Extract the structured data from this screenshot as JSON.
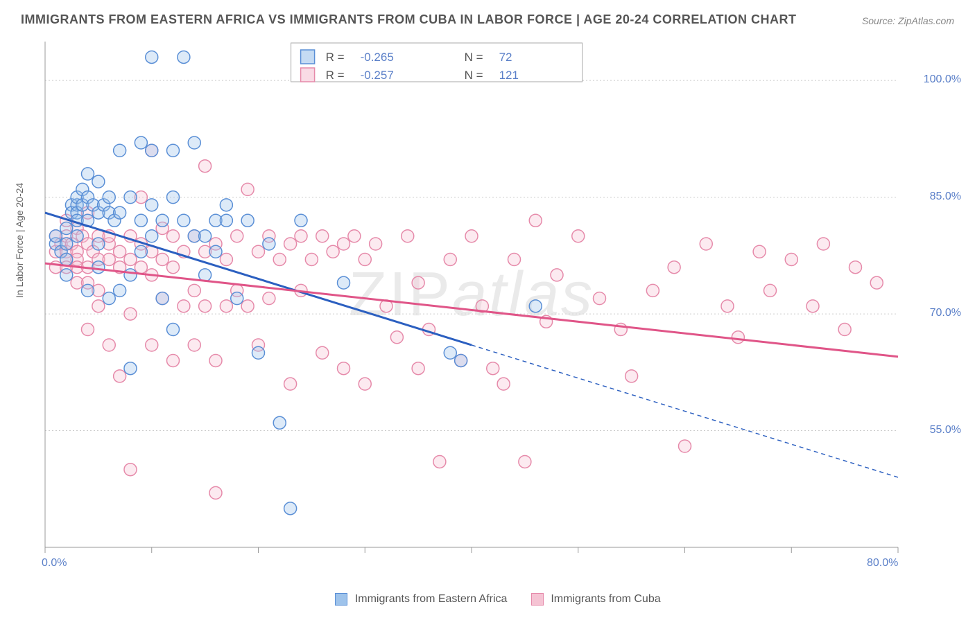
{
  "title": "IMMIGRANTS FROM EASTERN AFRICA VS IMMIGRANTS FROM CUBA IN LABOR FORCE | AGE 20-24 CORRELATION CHART",
  "source": "Source: ZipAtlas.com",
  "watermark_zip": "ZIP",
  "watermark_atlas": "atlas",
  "y_axis_label": "In Labor Force | Age 20-24",
  "chart": {
    "type": "scatter",
    "background_color": "#ffffff",
    "grid_color": "#cccccc",
    "grid_dash": "2,3",
    "axis_color": "#999999",
    "tick_color": "#5a7fc8",
    "xlim": [
      0,
      80
    ],
    "ylim": [
      40,
      105
    ],
    "x_ticks": [
      0,
      10,
      20,
      30,
      40,
      50,
      60,
      70,
      80
    ],
    "x_tick_labels": {
      "0": "0.0%",
      "80": "80.0%"
    },
    "y_ticks": [
      55,
      70,
      85,
      100
    ],
    "y_tick_labels": {
      "55": "55.0%",
      "70": "70.0%",
      "85": "85.0%",
      "100": "100.0%"
    },
    "marker_radius": 9,
    "marker_stroke_width": 1.5,
    "marker_fill_opacity": 0.35,
    "trend_line_width": 3
  },
  "legend_box": {
    "r_label": "R =",
    "n_label": "N =",
    "border_color": "#aaaaaa",
    "text_color": "#555555",
    "value_color": "#5a7fc8"
  },
  "series": [
    {
      "name": "Immigrants from Eastern Africa",
      "color_fill": "#9ec3eb",
      "color_stroke": "#5a8fd6",
      "trend_color": "#2b5fc0",
      "R": "-0.265",
      "N": "72",
      "trend": {
        "x1": 0,
        "y1": 83,
        "x2_solid": 40,
        "y2_solid": 66,
        "x2": 80,
        "y2": 49
      },
      "points": [
        [
          1,
          79
        ],
        [
          1,
          80
        ],
        [
          1.5,
          78
        ],
        [
          2,
          81
        ],
        [
          2,
          79
        ],
        [
          2,
          77
        ],
        [
          2,
          75
        ],
        [
          2.5,
          84
        ],
        [
          2.5,
          83
        ],
        [
          3,
          84
        ],
        [
          3,
          83
        ],
        [
          3,
          82
        ],
        [
          3,
          85
        ],
        [
          3,
          80
        ],
        [
          3.5,
          84
        ],
        [
          3.5,
          86
        ],
        [
          4,
          85
        ],
        [
          4,
          82
        ],
        [
          4,
          88
        ],
        [
          4,
          73
        ],
        [
          4.5,
          84
        ],
        [
          5,
          83
        ],
        [
          5,
          87
        ],
        [
          5,
          79
        ],
        [
          5,
          76
        ],
        [
          5.5,
          84
        ],
        [
          6,
          83
        ],
        [
          6,
          85
        ],
        [
          6,
          72
        ],
        [
          6.5,
          82
        ],
        [
          7,
          91
        ],
        [
          7,
          83
        ],
        [
          7,
          73
        ],
        [
          8,
          85
        ],
        [
          8,
          63
        ],
        [
          8,
          75
        ],
        [
          9,
          92
        ],
        [
          9,
          82
        ],
        [
          9,
          78
        ],
        [
          10,
          103
        ],
        [
          10,
          91
        ],
        [
          10,
          80
        ],
        [
          10,
          84
        ],
        [
          11,
          72
        ],
        [
          11,
          82
        ],
        [
          12,
          91
        ],
        [
          12,
          85
        ],
        [
          12,
          68
        ],
        [
          13,
          103
        ],
        [
          13,
          82
        ],
        [
          14,
          92
        ],
        [
          14,
          80
        ],
        [
          15,
          80
        ],
        [
          15,
          75
        ],
        [
          16,
          78
        ],
        [
          16,
          82
        ],
        [
          17,
          82
        ],
        [
          17,
          84
        ],
        [
          18,
          72
        ],
        [
          19,
          82
        ],
        [
          20,
          65
        ],
        [
          21,
          79
        ],
        [
          22,
          56
        ],
        [
          23,
          45
        ],
        [
          24,
          82
        ],
        [
          28,
          74
        ],
        [
          38,
          65
        ],
        [
          39,
          64
        ],
        [
          46,
          71
        ]
      ]
    },
    {
      "name": "Immigrants from Cuba",
      "color_fill": "#f5c3d3",
      "color_stroke": "#e68aaa",
      "trend_color": "#e05588",
      "R": "-0.257",
      "N": "121",
      "trend": {
        "x1": 0,
        "y1": 76.5,
        "x2_solid": 80,
        "y2_solid": 64.5,
        "x2": 80,
        "y2": 64.5
      },
      "points": [
        [
          1,
          78
        ],
        [
          1,
          76
        ],
        [
          1,
          80
        ],
        [
          1.5,
          79
        ],
        [
          2,
          78
        ],
        [
          2,
          77
        ],
        [
          2,
          76
        ],
        [
          2,
          80
        ],
        [
          2,
          82
        ],
        [
          2.5,
          79
        ],
        [
          3,
          81
        ],
        [
          3,
          78
        ],
        [
          3,
          77
        ],
        [
          3,
          76
        ],
        [
          3,
          74
        ],
        [
          3.5,
          80
        ],
        [
          4,
          83
        ],
        [
          4,
          79
        ],
        [
          4,
          76
        ],
        [
          4,
          74
        ],
        [
          4,
          68
        ],
        [
          4.5,
          78
        ],
        [
          5,
          80
        ],
        [
          5,
          77
        ],
        [
          5,
          73
        ],
        [
          5,
          71
        ],
        [
          6,
          79
        ],
        [
          6,
          77
        ],
        [
          6,
          80
        ],
        [
          6,
          66
        ],
        [
          7,
          78
        ],
        [
          7,
          76
        ],
        [
          7,
          62
        ],
        [
          8,
          80
        ],
        [
          8,
          77
        ],
        [
          8,
          70
        ],
        [
          8,
          50
        ],
        [
          9,
          79
        ],
        [
          9,
          76
        ],
        [
          9,
          85
        ],
        [
          10,
          91
        ],
        [
          10,
          78
        ],
        [
          10,
          75
        ],
        [
          10,
          66
        ],
        [
          11,
          77
        ],
        [
          11,
          81
        ],
        [
          11,
          72
        ],
        [
          12,
          80
        ],
        [
          12,
          76
        ],
        [
          12,
          64
        ],
        [
          13,
          78
        ],
        [
          13,
          71
        ],
        [
          14,
          80
        ],
        [
          14,
          73
        ],
        [
          14,
          66
        ],
        [
          15,
          89
        ],
        [
          15,
          78
        ],
        [
          15,
          71
        ],
        [
          16,
          79
        ],
        [
          16,
          64
        ],
        [
          16,
          47
        ],
        [
          17,
          77
        ],
        [
          17,
          71
        ],
        [
          18,
          80
        ],
        [
          18,
          73
        ],
        [
          19,
          86
        ],
        [
          19,
          71
        ],
        [
          20,
          78
        ],
        [
          20,
          66
        ],
        [
          21,
          80
        ],
        [
          21,
          72
        ],
        [
          22,
          77
        ],
        [
          23,
          79
        ],
        [
          23,
          61
        ],
        [
          24,
          80
        ],
        [
          24,
          73
        ],
        [
          25,
          77
        ],
        [
          26,
          80
        ],
        [
          26,
          65
        ],
        [
          27,
          78
        ],
        [
          28,
          79
        ],
        [
          28,
          63
        ],
        [
          29,
          80
        ],
        [
          30,
          77
        ],
        [
          30,
          61
        ],
        [
          31,
          79
        ],
        [
          32,
          71
        ],
        [
          33,
          67
        ],
        [
          34,
          80
        ],
        [
          35,
          74
        ],
        [
          35,
          63
        ],
        [
          36,
          68
        ],
        [
          37,
          51
        ],
        [
          38,
          77
        ],
        [
          39,
          64
        ],
        [
          40,
          80
        ],
        [
          41,
          71
        ],
        [
          42,
          63
        ],
        [
          43,
          61
        ],
        [
          44,
          77
        ],
        [
          45,
          51
        ],
        [
          46,
          82
        ],
        [
          47,
          69
        ],
        [
          48,
          75
        ],
        [
          50,
          80
        ],
        [
          52,
          72
        ],
        [
          54,
          68
        ],
        [
          55,
          62
        ],
        [
          57,
          73
        ],
        [
          59,
          76
        ],
        [
          60,
          53
        ],
        [
          62,
          79
        ],
        [
          64,
          71
        ],
        [
          65,
          67
        ],
        [
          67,
          78
        ],
        [
          68,
          73
        ],
        [
          70,
          77
        ],
        [
          72,
          71
        ],
        [
          73,
          79
        ],
        [
          75,
          68
        ],
        [
          76,
          76
        ],
        [
          78,
          74
        ]
      ]
    }
  ],
  "bottom_legend": {
    "series1_label": "Immigrants from Eastern Africa",
    "series2_label": "Immigrants from Cuba"
  }
}
